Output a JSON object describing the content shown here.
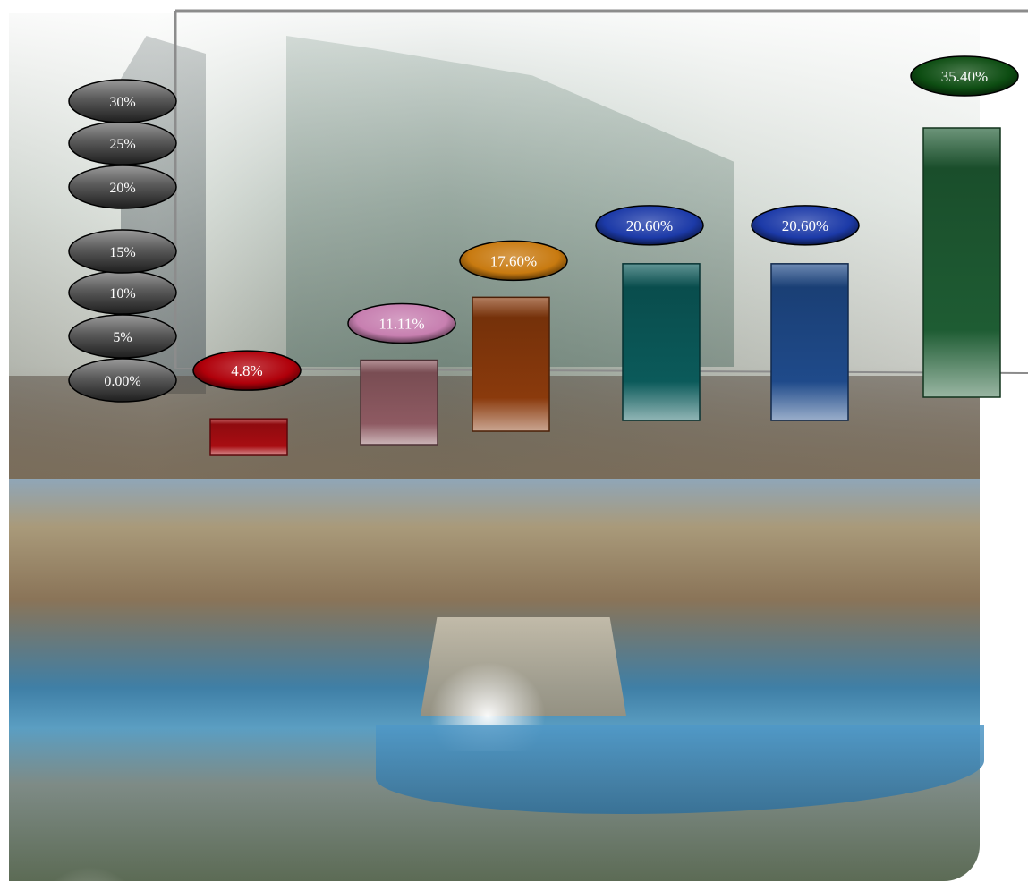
{
  "chart_data": {
    "type": "bar",
    "categories": [
      "",
      "",
      "",
      "",
      "",
      ""
    ],
    "values": [
      4.8,
      11.11,
      17.6,
      20.6,
      20.6,
      35.4
    ],
    "value_labels": [
      "4.8%",
      "11.11%",
      "17.60%",
      "20.60%",
      "20.60%",
      "35.40%"
    ],
    "bar_colors": [
      "#a80d12",
      "#8e5a62",
      "#8a3a0c",
      "#0b5a5a",
      "#1f4a8a",
      "#1e5c33"
    ],
    "label_colors": [
      "#b0000a",
      "#c77fb0",
      "#c87a10",
      "#1c3aa8",
      "#1c3aa8",
      "#0d4d12"
    ],
    "ytick_labels": [
      "0.00%",
      "5%",
      "10%",
      "15%",
      "20%",
      "25%",
      "30%"
    ],
    "ytick_values": [
      0,
      5,
      10,
      15,
      20,
      25,
      30
    ],
    "ylim": [
      0,
      35.4
    ],
    "title": "",
    "xlabel": "",
    "ylabel": "",
    "grid": false,
    "legend": "none"
  }
}
